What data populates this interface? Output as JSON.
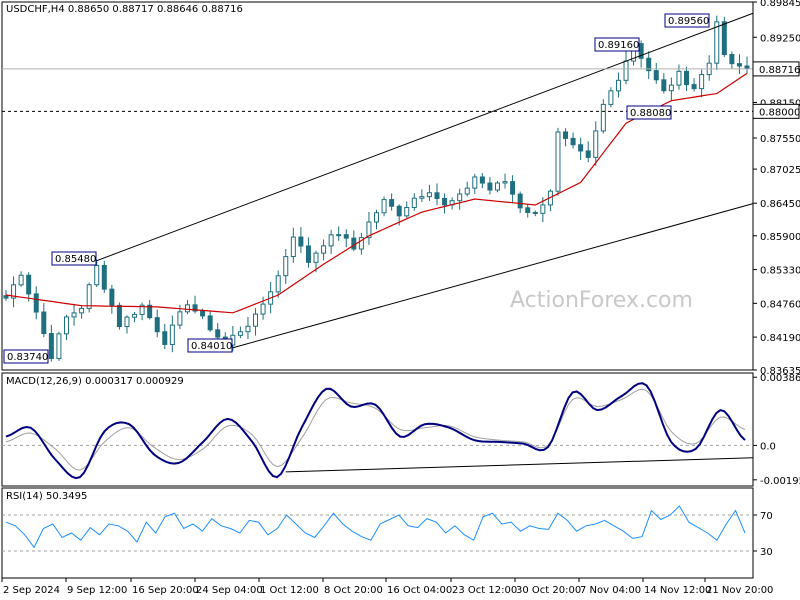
{
  "header": {
    "symbol": "USDCHF,H4",
    "ohlc": "0.88650 0.88717 0.88646 0.88716"
  },
  "watermark": "ActionForex.com",
  "colors": {
    "candle": "#1f6f7f",
    "ma": "#cc0000",
    "channel": "#000000",
    "macd": "#000080",
    "signal": "#a0a0a0",
    "rsi": "#1e90ff"
  },
  "chart_data": [
    {
      "type": "candlestick",
      "title": "USDCHF,H4",
      "ylim": [
        0.83635,
        0.89845
      ],
      "y_ticks": [
        "0.89845",
        "0.89250",
        "0.88716",
        "0.88150",
        "0.87550",
        "0.87025",
        "0.86450",
        "0.85900",
        "0.85330",
        "0.84760",
        "0.84190",
        "0.83635"
      ],
      "current_price": "0.88716",
      "support_level": "0.88000",
      "x_labels": [
        "2 Sep 2024",
        "9 Sep 12:00",
        "16 Sep 20:00",
        "24 Sep 04:00",
        "1 Oct 12:00",
        "8 Oct 20:00",
        "16 Oct 04:00",
        "23 Oct 12:00",
        "30 Oct 20:00",
        "7 Nov 04:00",
        "14 Nov 12:00",
        "21 Nov 20:00"
      ],
      "price_labels": [
        {
          "text": "0.83740",
          "value": 0.8374
        },
        {
          "text": "0.85480",
          "value": 0.8548
        },
        {
          "text": "0.84010",
          "value": 0.8401
        },
        {
          "text": "0.89160",
          "value": 0.8916
        },
        {
          "text": "0.88080",
          "value": 0.8808
        },
        {
          "text": "0.89560",
          "value": 0.8956
        }
      ],
      "close_path": [
        [
          0,
          0.8485
        ],
        [
          2,
          0.8528
        ],
        [
          4,
          0.8462
        ],
        [
          6,
          0.8388
        ],
        [
          8,
          0.8452
        ],
        [
          10,
          0.847
        ],
        [
          12,
          0.8538
        ],
        [
          13,
          0.8505
        ],
        [
          15,
          0.844
        ],
        [
          18,
          0.8472
        ],
        [
          21,
          0.8412
        ],
        [
          24,
          0.8478
        ],
        [
          27,
          0.8435
        ],
        [
          29,
          0.8405
        ],
        [
          30,
          0.842
        ],
        [
          33,
          0.8452
        ],
        [
          36,
          0.8522
        ],
        [
          38,
          0.8592
        ],
        [
          40,
          0.8547
        ],
        [
          42,
          0.8578
        ],
        [
          44,
          0.8595
        ],
        [
          46,
          0.8568
        ],
        [
          48,
          0.8612
        ],
        [
          50,
          0.8648
        ],
        [
          52,
          0.8628
        ],
        [
          54,
          0.8654
        ],
        [
          56,
          0.8668
        ],
        [
          58,
          0.864
        ],
        [
          60,
          0.8655
        ],
        [
          62,
          0.869
        ],
        [
          64,
          0.8668
        ],
        [
          66,
          0.8682
        ],
        [
          68,
          0.864
        ],
        [
          70,
          0.8625
        ],
        [
          72,
          0.8668
        ],
        [
          73,
          0.8762
        ],
        [
          75,
          0.8738
        ],
        [
          77,
          0.8718
        ],
        [
          79,
          0.881
        ],
        [
          81,
          0.8858
        ],
        [
          83,
          0.8916
        ],
        [
          85,
          0.887
        ],
        [
          87,
          0.8832
        ],
        [
          89,
          0.8862
        ],
        [
          91,
          0.884
        ],
        [
          93,
          0.8882
        ],
        [
          94,
          0.8956
        ],
        [
          95,
          0.889
        ],
        [
          97,
          0.8872
        ],
        [
          98,
          0.8872
        ]
      ],
      "ma_path": [
        [
          0,
          0.849
        ],
        [
          10,
          0.8472
        ],
        [
          20,
          0.847
        ],
        [
          30,
          0.846
        ],
        [
          36,
          0.849
        ],
        [
          42,
          0.8542
        ],
        [
          48,
          0.859
        ],
        [
          55,
          0.863
        ],
        [
          62,
          0.8652
        ],
        [
          70,
          0.8642
        ],
        [
          76,
          0.868
        ],
        [
          82,
          0.878
        ],
        [
          88,
          0.8818
        ],
        [
          94,
          0.883
        ],
        [
          98,
          0.8864
        ]
      ],
      "channel_upper": [
        [
          0.8548,
          12
        ],
        [
          0.8956,
          98
        ]
      ],
      "channel_lower": [
        [
          0.8401,
          30
        ],
        [
          0.8634,
          98
        ]
      ]
    },
    {
      "type": "line",
      "title": "MACD(12,26,9) 0.000317 0.000929",
      "ylim": [
        -0.0023,
        0.0041
      ],
      "y_ticks": [
        "0.003861",
        "0.0",
        "-0.00195"
      ],
      "series": [
        {
          "name": "MACD",
          "values": [
            0.0005,
            0.001,
            -0.0008,
            -0.0018,
            0.0008,
            0.0012,
            -0.0005,
            -0.001,
            0.0002,
            0.0015,
            0.0002,
            -0.0018,
            0.001,
            0.0032,
            0.0022,
            0.0023,
            0.0005,
            0.0012,
            0.001,
            0.0003,
            0.0002,
            0.0001,
            -0.0001,
            0.003,
            0.002,
            0.0028,
            0.0034,
            0.0002,
            -0.0002,
            0.002,
            0.0003
          ]
        },
        {
          "name": "Signal",
          "values": [
            0.0002,
            0.0007,
            -0.0002,
            -0.0014,
            0.0002,
            0.001,
            -0.0001,
            -0.0008,
            -0.0002,
            0.0011,
            0.0006,
            -0.0012,
            0.0004,
            0.0026,
            0.0024,
            0.0021,
            0.0009,
            0.001,
            0.0011,
            0.0005,
            0.0003,
            0.0002,
            0.0,
            0.0026,
            0.0022,
            0.0026,
            0.0031,
            0.0008,
            0.0001,
            0.0016,
            0.0009
          ]
        }
      ],
      "trendline": [
        [
          -0.0015,
          37
        ],
        [
          -0.0007,
          98
        ]
      ]
    },
    {
      "type": "line",
      "title": "RSI(14) 50.3495",
      "ylim": [
        0,
        100
      ],
      "y_ticks": [
        "70",
        "30"
      ],
      "levels": [
        70,
        30
      ],
      "series": [
        {
          "name": "RSI",
          "values": [
            62,
            58,
            48,
            34,
            55,
            60,
            45,
            50,
            42,
            56,
            48,
            60,
            58,
            52,
            40,
            62,
            50,
            68,
            72,
            55,
            60,
            52,
            66,
            58,
            55,
            50,
            64,
            62,
            48,
            55,
            70,
            60,
            50,
            45,
            58,
            72,
            60,
            52,
            46,
            42,
            60,
            65,
            70,
            58,
            56,
            66,
            62,
            50,
            58,
            48,
            42,
            68,
            72,
            60,
            62,
            52,
            58,
            55,
            54,
            72,
            64,
            52,
            58,
            60,
            64,
            58,
            52,
            44,
            46,
            75,
            65,
            70,
            80,
            62,
            56,
            50,
            42,
            60,
            75,
            50
          ]
        }
      ]
    }
  ]
}
